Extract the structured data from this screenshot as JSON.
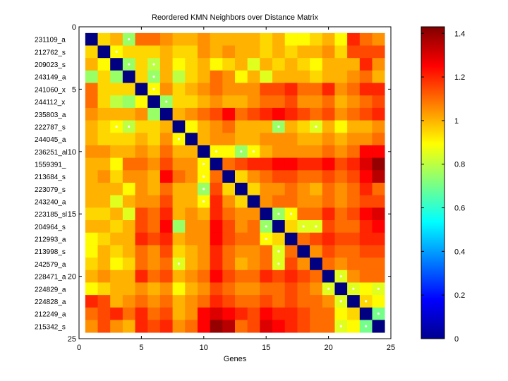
{
  "chart_data": {
    "type": "heatmap",
    "title": "Reordered KMN Neighbors over Distance Matrix",
    "xlabel": "Genes",
    "ylabel": "",
    "row_labels": [
      "231109_a",
      "212762_s",
      "209023_s",
      "243149_a",
      "241060_x",
      "244112_x",
      "235803_a",
      "222787_s",
      "244045_a",
      "236251_al",
      "1559391_",
      "213684_s",
      "223079_s",
      "243240_a",
      "223185_sl",
      "204964_s",
      "212993_a",
      "213998_s",
      "242579_a",
      "228471_a",
      "224829_a",
      "224828_a",
      "212249_a",
      "215342_s"
    ],
    "x_ticks": [
      "0",
      "5",
      "10",
      "15",
      "20",
      "25"
    ],
    "x_tick_values": [
      0,
      5,
      10,
      15,
      20,
      25
    ],
    "y_ticks": [
      "0",
      "5",
      "10",
      "15",
      "20",
      "25"
    ],
    "y_tick_values": [
      0,
      5,
      10,
      15,
      20,
      25
    ],
    "xlim": [
      0,
      25
    ],
    "ylim": [
      0,
      25
    ],
    "colorbar": {
      "range": [
        0,
        1.43
      ],
      "colormap": "jet",
      "ticks": [
        "0",
        "0.2",
        "0.4",
        "0.6",
        "0.8",
        "1",
        "1.2",
        "1.4"
      ],
      "tick_values": [
        0,
        0.2,
        0.4,
        0.6,
        0.8,
        1.0,
        1.2,
        1.4
      ]
    },
    "neighbor_marker": "white dot",
    "matrix": [
      [
        0.0,
        0.95,
        1.0,
        0.75,
        1.1,
        1.1,
        1.05,
        1.0,
        1.0,
        1.05,
        1.0,
        1.0,
        1.0,
        1.0,
        0.95,
        1.0,
        0.9,
        0.9,
        0.95,
        1.0,
        0.9,
        1.2,
        1.1,
        1.05
      ],
      [
        0.95,
        0.0,
        0.9,
        0.95,
        0.95,
        0.95,
        1.0,
        0.95,
        0.95,
        1.05,
        1.0,
        1.05,
        1.0,
        1.0,
        0.95,
        1.0,
        0.95,
        1.0,
        1.0,
        1.05,
        0.95,
        1.15,
        1.15,
        1.15
      ],
      [
        1.0,
        0.9,
        0.0,
        0.75,
        0.95,
        0.8,
        1.0,
        0.9,
        0.95,
        1.0,
        0.9,
        0.95,
        1.0,
        0.85,
        1.0,
        0.95,
        1.0,
        0.95,
        0.9,
        1.0,
        1.0,
        1.0,
        1.2,
        1.05
      ],
      [
        0.75,
        0.95,
        0.75,
        0.0,
        0.95,
        0.75,
        1.0,
        0.8,
        0.95,
        1.0,
        1.1,
        1.05,
        0.9,
        1.0,
        0.85,
        1.0,
        1.0,
        1.0,
        0.95,
        1.0,
        1.0,
        1.05,
        1.1,
        1.0
      ],
      [
        1.1,
        0.95,
        0.95,
        0.95,
        0.0,
        0.9,
        1.05,
        0.95,
        1.0,
        1.05,
        1.1,
        1.05,
        1.05,
        1.05,
        1.15,
        1.15,
        1.2,
        1.1,
        1.1,
        1.2,
        1.05,
        1.1,
        1.2,
        1.2
      ],
      [
        1.1,
        0.95,
        0.8,
        0.75,
        0.9,
        0.0,
        0.75,
        0.95,
        0.95,
        1.0,
        1.05,
        1.0,
        1.0,
        1.05,
        1.1,
        1.1,
        1.15,
        1.05,
        1.05,
        1.1,
        1.0,
        1.05,
        1.1,
        1.15
      ],
      [
        1.05,
        1.0,
        1.0,
        1.0,
        1.05,
        0.75,
        0.0,
        1.0,
        1.05,
        1.1,
        1.15,
        1.25,
        1.1,
        1.15,
        1.2,
        1.25,
        1.2,
        1.15,
        1.1,
        1.15,
        1.05,
        1.1,
        1.15,
        1.2
      ],
      [
        1.0,
        0.95,
        0.9,
        0.8,
        0.95,
        0.95,
        1.0,
        0.0,
        0.9,
        1.0,
        1.05,
        1.1,
        1.0,
        1.0,
        1.0,
        0.75,
        1.0,
        0.95,
        0.85,
        1.0,
        0.9,
        1.0,
        1.0,
        1.05
      ],
      [
        1.0,
        0.95,
        0.95,
        0.95,
        1.0,
        0.95,
        1.05,
        0.9,
        0.0,
        1.0,
        1.05,
        1.05,
        1.0,
        1.0,
        1.05,
        1.05,
        1.05,
        1.0,
        1.0,
        1.05,
        1.0,
        1.05,
        1.05,
        1.1
      ],
      [
        1.05,
        1.05,
        1.0,
        1.0,
        1.05,
        1.0,
        1.1,
        1.0,
        1.0,
        0.0,
        0.9,
        0.9,
        0.75,
        0.9,
        1.0,
        1.05,
        1.05,
        1.05,
        1.05,
        1.1,
        1.05,
        1.1,
        1.25,
        1.25
      ],
      [
        1.0,
        1.0,
        0.9,
        1.1,
        1.1,
        1.05,
        1.15,
        1.05,
        1.05,
        0.9,
        0.0,
        1.1,
        1.15,
        1.2,
        1.2,
        1.25,
        1.25,
        1.2,
        1.2,
        1.25,
        1.15,
        1.2,
        1.3,
        1.4
      ],
      [
        1.0,
        1.05,
        0.95,
        1.05,
        1.05,
        1.0,
        1.25,
        1.1,
        1.05,
        0.9,
        1.1,
        0.0,
        0.95,
        1.05,
        1.1,
        1.15,
        1.15,
        1.1,
        1.1,
        1.15,
        1.1,
        1.15,
        1.25,
        1.35
      ],
      [
        1.0,
        1.0,
        1.0,
        0.9,
        1.05,
        1.0,
        1.1,
        1.0,
        1.0,
        0.75,
        1.15,
        0.95,
        0.0,
        0.95,
        1.05,
        1.05,
        1.1,
        1.05,
        1.0,
        1.1,
        1.05,
        1.1,
        1.2,
        1.1
      ],
      [
        1.0,
        1.0,
        0.85,
        1.0,
        1.05,
        1.05,
        1.15,
        1.0,
        1.0,
        0.9,
        1.2,
        1.05,
        0.95,
        0.0,
        1.05,
        1.1,
        1.1,
        1.05,
        1.05,
        1.1,
        1.05,
        1.1,
        1.15,
        1.15
      ],
      [
        0.95,
        0.95,
        1.0,
        0.85,
        1.15,
        1.1,
        1.2,
        1.0,
        1.05,
        1.0,
        1.2,
        1.1,
        1.05,
        1.05,
        0.0,
        0.75,
        0.9,
        1.1,
        1.1,
        1.2,
        1.1,
        1.15,
        1.25,
        1.3
      ],
      [
        1.0,
        1.0,
        0.95,
        1.0,
        1.15,
        1.1,
        1.25,
        0.75,
        1.05,
        1.05,
        1.25,
        1.15,
        1.05,
        1.1,
        0.75,
        0.0,
        0.95,
        0.85,
        0.85,
        1.15,
        1.1,
        1.1,
        1.2,
        1.25
      ],
      [
        0.9,
        0.95,
        1.0,
        1.0,
        1.2,
        1.15,
        1.2,
        1.0,
        1.05,
        1.05,
        1.25,
        1.15,
        1.1,
        1.1,
        0.9,
        0.95,
        0.0,
        1.1,
        1.15,
        1.2,
        1.15,
        1.15,
        1.2,
        1.2
      ],
      [
        0.9,
        1.0,
        0.95,
        1.0,
        1.1,
        1.05,
        1.15,
        0.95,
        1.0,
        1.05,
        1.2,
        1.1,
        1.05,
        1.05,
        1.1,
        0.85,
        1.1,
        0.0,
        1.05,
        1.15,
        1.1,
        1.1,
        1.15,
        1.15
      ],
      [
        0.95,
        1.0,
        0.9,
        0.95,
        1.1,
        1.05,
        1.1,
        0.85,
        1.0,
        1.05,
        1.2,
        1.1,
        1.0,
        1.05,
        1.1,
        0.85,
        1.15,
        1.05,
        0.0,
        1.1,
        1.05,
        1.1,
        1.1,
        1.1
      ],
      [
        1.0,
        1.05,
        1.0,
        1.0,
        1.2,
        1.1,
        1.15,
        1.0,
        1.05,
        1.1,
        1.25,
        1.15,
        1.1,
        1.1,
        1.2,
        1.15,
        1.2,
        1.15,
        1.1,
        0.0,
        0.85,
        1.05,
        1.1,
        1.1
      ],
      [
        0.9,
        0.95,
        1.0,
        1.0,
        1.05,
        1.0,
        1.05,
        0.9,
        1.0,
        1.05,
        1.15,
        1.1,
        1.05,
        1.05,
        1.1,
        1.1,
        1.15,
        1.1,
        1.05,
        0.85,
        0.0,
        0.85,
        0.9,
        0.85
      ],
      [
        1.2,
        1.15,
        1.0,
        1.05,
        1.1,
        1.05,
        1.1,
        1.0,
        1.05,
        1.1,
        1.2,
        1.15,
        1.1,
        1.1,
        1.15,
        1.1,
        1.15,
        1.1,
        1.1,
        1.05,
        0.85,
        0.0,
        0.95,
        0.9
      ],
      [
        1.1,
        1.15,
        1.2,
        1.1,
        1.2,
        1.1,
        1.15,
        1.0,
        1.05,
        1.25,
        1.3,
        1.25,
        1.2,
        1.15,
        1.25,
        1.2,
        1.2,
        1.15,
        1.1,
        1.1,
        0.9,
        0.95,
        0.0,
        0.7
      ],
      [
        1.05,
        1.15,
        1.05,
        1.0,
        1.2,
        1.15,
        1.2,
        1.05,
        1.1,
        1.25,
        1.4,
        1.35,
        1.1,
        1.15,
        1.3,
        1.25,
        1.2,
        1.15,
        1.1,
        1.1,
        0.85,
        0.9,
        0.7,
        0.0
      ]
    ],
    "neighbors": [
      [
        0,
        3
      ],
      [
        1,
        2
      ],
      [
        2,
        3
      ],
      [
        2,
        5
      ],
      [
        3,
        5
      ],
      [
        4,
        5
      ],
      [
        5,
        6
      ],
      [
        7,
        2
      ],
      [
        7,
        3
      ],
      [
        7,
        15
      ],
      [
        7,
        18
      ],
      [
        8,
        7
      ],
      [
        9,
        10
      ],
      [
        9,
        12
      ],
      [
        9,
        13
      ],
      [
        10,
        9
      ],
      [
        11,
        9
      ],
      [
        12,
        9
      ],
      [
        13,
        9
      ],
      [
        14,
        15
      ],
      [
        14,
        16
      ],
      [
        15,
        14
      ],
      [
        15,
        17
      ],
      [
        15,
        18
      ],
      [
        16,
        14
      ],
      [
        17,
        15
      ],
      [
        18,
        15
      ],
      [
        18,
        7
      ],
      [
        19,
        20
      ],
      [
        20,
        19
      ],
      [
        20,
        21
      ],
      [
        20,
        23
      ],
      [
        21,
        20
      ],
      [
        21,
        22
      ],
      [
        22,
        23
      ],
      [
        23,
        22
      ],
      [
        23,
        20
      ]
    ]
  }
}
